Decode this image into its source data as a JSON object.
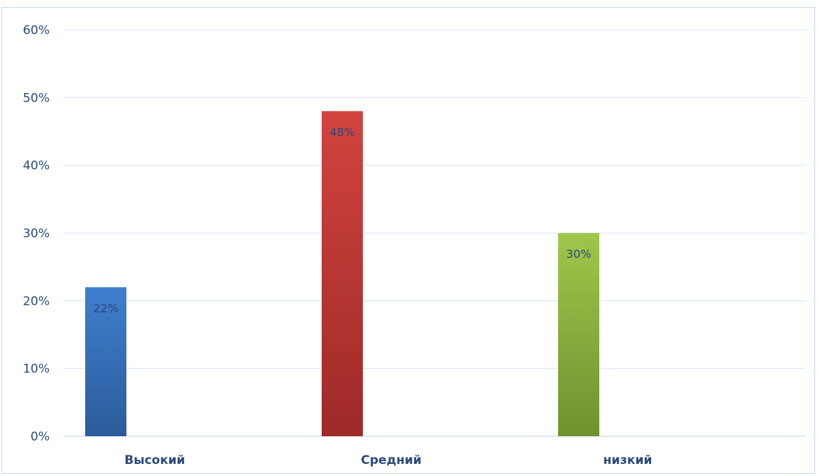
{
  "chart_data": {
    "type": "bar",
    "categories": [
      "Высокий",
      "Средний",
      "низкий"
    ],
    "values": [
      22,
      48,
      30
    ],
    "value_labels": [
      "22%",
      "48%",
      "30%"
    ],
    "colors": [
      "#3a77c2",
      "#c43a37",
      "#8fb43c"
    ],
    "yticks": [
      0,
      10,
      20,
      30,
      40,
      50,
      60
    ],
    "ytick_labels": [
      "0%",
      "10%",
      "20%",
      "30%",
      "40%",
      "50%",
      "60%"
    ],
    "ylim": [
      0,
      60
    ],
    "grid": true,
    "title": "",
    "xlabel": "",
    "ylabel": ""
  }
}
